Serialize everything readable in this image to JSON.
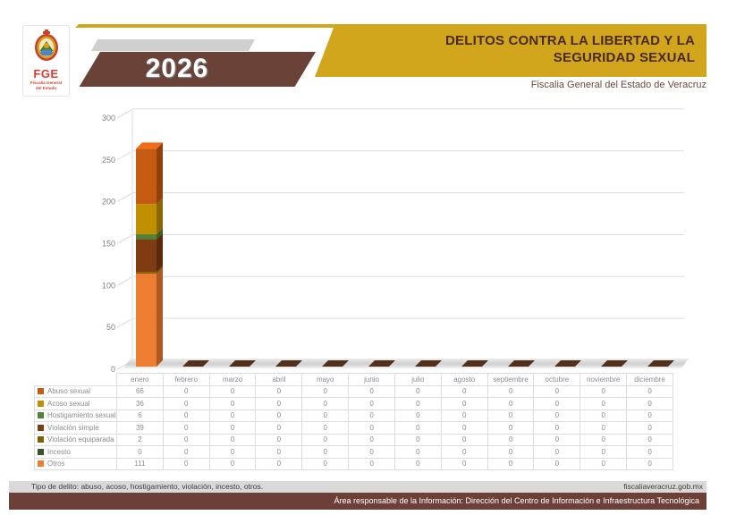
{
  "header": {
    "logo": {
      "acronym": "FGE",
      "org_line1": "Fiscalía General",
      "org_line2": "del Estado"
    },
    "year": "2026",
    "title_line1": "DELITOS CONTRA LA LIBERTAD Y LA",
    "title_line2": "SEGURIDAD SEXUAL",
    "subtitle": "Fiscalia General del Estado de Veracruz",
    "colors": {
      "gold": "#d1a51c",
      "brown": "#6b4238",
      "gray": "#cfcfcf"
    }
  },
  "chart_data": {
    "type": "bar",
    "stacked": true,
    "stack_order": "first-series-on-top",
    "title": "DELITOS CONTRA LA LIBERTAD Y LA SEGURIDAD SEXUAL",
    "year": "2026",
    "categories": [
      "enero",
      "febrero",
      "marzo",
      "abril",
      "mayo",
      "junio",
      "julio",
      "agosto",
      "septiembre",
      "octubre",
      "noviembre",
      "diciembre"
    ],
    "series": [
      {
        "name": "Abuso sexual",
        "color": "#C55A11",
        "values": [
          66,
          0,
          0,
          0,
          0,
          0,
          0,
          0,
          0,
          0,
          0,
          0
        ]
      },
      {
        "name": "Acoso sexual",
        "color": "#BF8F00",
        "values": [
          36,
          0,
          0,
          0,
          0,
          0,
          0,
          0,
          0,
          0,
          0,
          0
        ]
      },
      {
        "name": "Hostigamiento sexual",
        "color": "#538135",
        "values": [
          6,
          0,
          0,
          0,
          0,
          0,
          0,
          0,
          0,
          0,
          0,
          0
        ]
      },
      {
        "name": "Violación simple",
        "color": "#7F3B12",
        "values": [
          39,
          0,
          0,
          0,
          0,
          0,
          0,
          0,
          0,
          0,
          0,
          0
        ]
      },
      {
        "name": "Violación equiparada",
        "color": "#7F6000",
        "values": [
          2,
          0,
          0,
          0,
          0,
          0,
          0,
          0,
          0,
          0,
          0,
          0
        ]
      },
      {
        "name": "Incesto",
        "color": "#375623",
        "values": [
          0,
          0,
          0,
          0,
          0,
          0,
          0,
          0,
          0,
          0,
          0,
          0
        ]
      },
      {
        "name": "Otros",
        "color": "#ED7D31",
        "values": [
          111,
          0,
          0,
          0,
          0,
          0,
          0,
          0,
          0,
          0,
          0,
          0
        ]
      }
    ],
    "ylim": [
      0,
      300
    ],
    "yticks": [
      0,
      50,
      100,
      150,
      200,
      250,
      300
    ],
    "grid": true,
    "legend_position": "table-rows-left"
  },
  "footer": {
    "note": "Tipo de delito: abuso, acoso, hostigamiento, violación, incesto, otros.",
    "website": "fiscaliaveracruz.gob.mx",
    "responsibility": "Área responsable de la Información: Dirección del Centro de Información e Infraestructura Tecnológica"
  }
}
